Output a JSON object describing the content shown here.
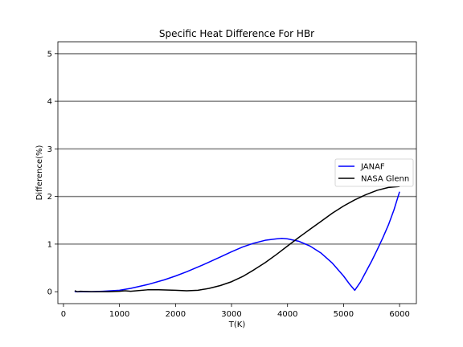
{
  "chart_data": {
    "type": "line",
    "title": "Specific Heat Difference For HBr",
    "xlabel": "T(K)",
    "ylabel": "Difference(%)",
    "xlim": [
      -100,
      6300
    ],
    "ylim": [
      -0.25,
      5.25
    ],
    "xticks": [
      0,
      1000,
      2000,
      3000,
      4000,
      5000,
      6000
    ],
    "yticks": [
      0,
      1,
      2,
      3,
      4,
      5
    ],
    "hlines": [
      1,
      2,
      3,
      4,
      5
    ],
    "legend_position": "center-right",
    "series": [
      {
        "name": "JANAF",
        "color": "#0000ff",
        "x": [
          200,
          300,
          500,
          700,
          1000,
          1200,
          1500,
          1800,
          2000,
          2200,
          2500,
          2800,
          3000,
          3200,
          3400,
          3600,
          3800,
          3900,
          4000,
          4200,
          4400,
          4600,
          4800,
          5000,
          5100,
          5200,
          5300,
          5400,
          5500,
          5600,
          5700,
          5800,
          5900,
          6000
        ],
        "y": [
          0.0,
          0.0,
          0.0,
          0.01,
          0.03,
          0.07,
          0.15,
          0.25,
          0.33,
          0.42,
          0.57,
          0.73,
          0.84,
          0.94,
          1.02,
          1.08,
          1.11,
          1.12,
          1.11,
          1.06,
          0.96,
          0.81,
          0.6,
          0.33,
          0.17,
          0.03,
          0.2,
          0.42,
          0.64,
          0.88,
          1.13,
          1.4,
          1.72,
          2.1
        ]
      },
      {
        "name": "NASA Glenn",
        "color": "#000000",
        "x": [
          200,
          250,
          300,
          500,
          800,
          1000,
          1100,
          1200,
          1300,
          1500,
          1700,
          2000,
          2200,
          2400,
          2600,
          2800,
          3000,
          3200,
          3400,
          3600,
          3800,
          4000,
          4200,
          4400,
          4600,
          4800,
          5000,
          5200,
          5400,
          5600,
          5800,
          6000
        ],
        "y": [
          0.02,
          0.0,
          0.01,
          0.0,
          0.0,
          0.01,
          0.02,
          0.01,
          0.02,
          0.04,
          0.04,
          0.03,
          0.02,
          0.03,
          0.07,
          0.13,
          0.21,
          0.32,
          0.46,
          0.61,
          0.78,
          0.96,
          1.14,
          1.31,
          1.48,
          1.65,
          1.8,
          1.93,
          2.04,
          2.13,
          2.19,
          2.21
        ]
      }
    ]
  }
}
